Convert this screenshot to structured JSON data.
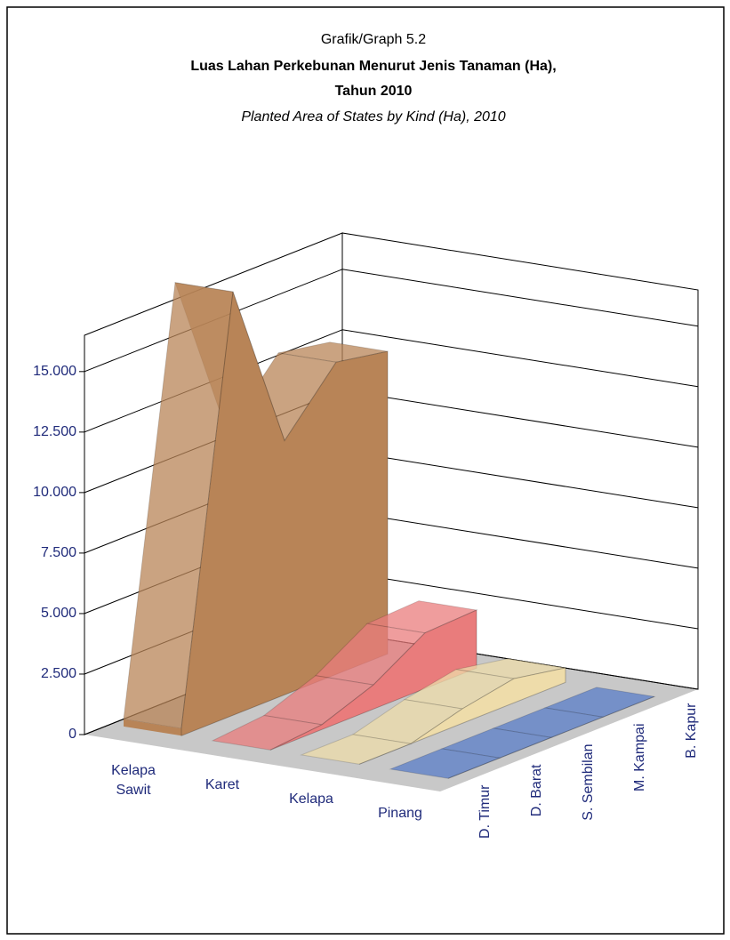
{
  "chart_data": {
    "type": "area3d",
    "pretitle": "Grafik/Graph 5.2",
    "title": [
      "Luas Lahan Perkebunan Menurut Jenis Tanaman (Ha),",
      "Tahun 2010"
    ],
    "subtitle": "Planted Area of States by Kind (Ha), 2010",
    "categories": [
      "D. Timur",
      "D. Barat",
      "S. Sembilan",
      "M. Kampai",
      "B. Kapur"
    ],
    "series": [
      {
        "name": "Kelapa Sawit",
        "color": "#b88457",
        "values": [
          300,
          17500,
          10500,
          12900,
          12500
        ]
      },
      {
        "name": "Karet",
        "color": "#e97c7c",
        "values": [
          0,
          200,
          1000,
          2300,
          2400
        ]
      },
      {
        "name": "Kelapa",
        "color": "#eedcaa",
        "values": [
          0,
          0,
          600,
          1000,
          600
        ]
      },
      {
        "name": "Pinang",
        "color": "#5a7ec8",
        "values": [
          0,
          0,
          0,
          0,
          0
        ]
      }
    ],
    "ylim": [
      0,
      16500
    ],
    "yticks": [
      0,
      {
        "value": 2500,
        "label": "2.500"
      },
      {
        "value": 5000,
        "label": "5.000"
      },
      {
        "value": 7500,
        "label": "7.500"
      },
      {
        "value": 10000,
        "label": "10.000"
      },
      {
        "value": 12500,
        "label": "12.500"
      },
      {
        "value": 15000,
        "label": "15.000"
      }
    ],
    "grid": true
  }
}
